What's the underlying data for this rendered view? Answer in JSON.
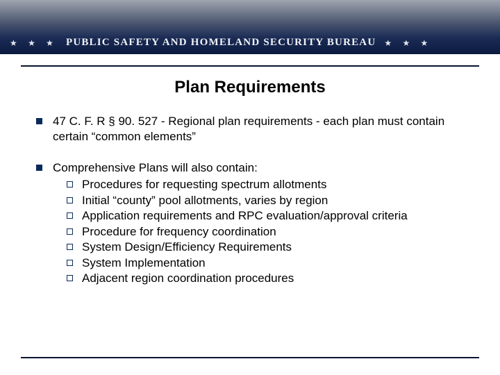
{
  "colors": {
    "banner_gradient_top": "#9fa5b0",
    "banner_gradient_mid": "#4f5a72",
    "banner_gradient_low": "#1a2b55",
    "banner_gradient_bot": "#0b1a3f",
    "rule_color": "#08142e",
    "bullet_fill": "#0b2a5b",
    "text": "#000000",
    "background": "#ffffff"
  },
  "typography": {
    "banner_title_fontsize_pt": 12,
    "slide_title_fontsize_pt": 24,
    "body_fontsize_pt": 17,
    "banner_font": "Times New Roman",
    "body_font": "Arial"
  },
  "banner": {
    "stars_left": "★  ★  ★",
    "title": "PUBLIC SAFETY AND HOMELAND SECURITY BUREAU",
    "stars_right": "★  ★  ★"
  },
  "slide": {
    "title": "Plan Requirements"
  },
  "bullets": [
    {
      "text": "47 C. F. R § 90. 527 - Regional plan requirements - each plan must contain certain “common elements”",
      "sub": []
    },
    {
      "text": "Comprehensive Plans will also contain:",
      "sub": [
        "Procedures for requesting spectrum allotments",
        "Initial “county” pool allotments, varies by region",
        "Application requirements and RPC evaluation/approval criteria",
        "Procedure for frequency coordination",
        "System Design/Efficiency Requirements",
        "System Implementation",
        "Adjacent region coordination procedures"
      ]
    }
  ]
}
